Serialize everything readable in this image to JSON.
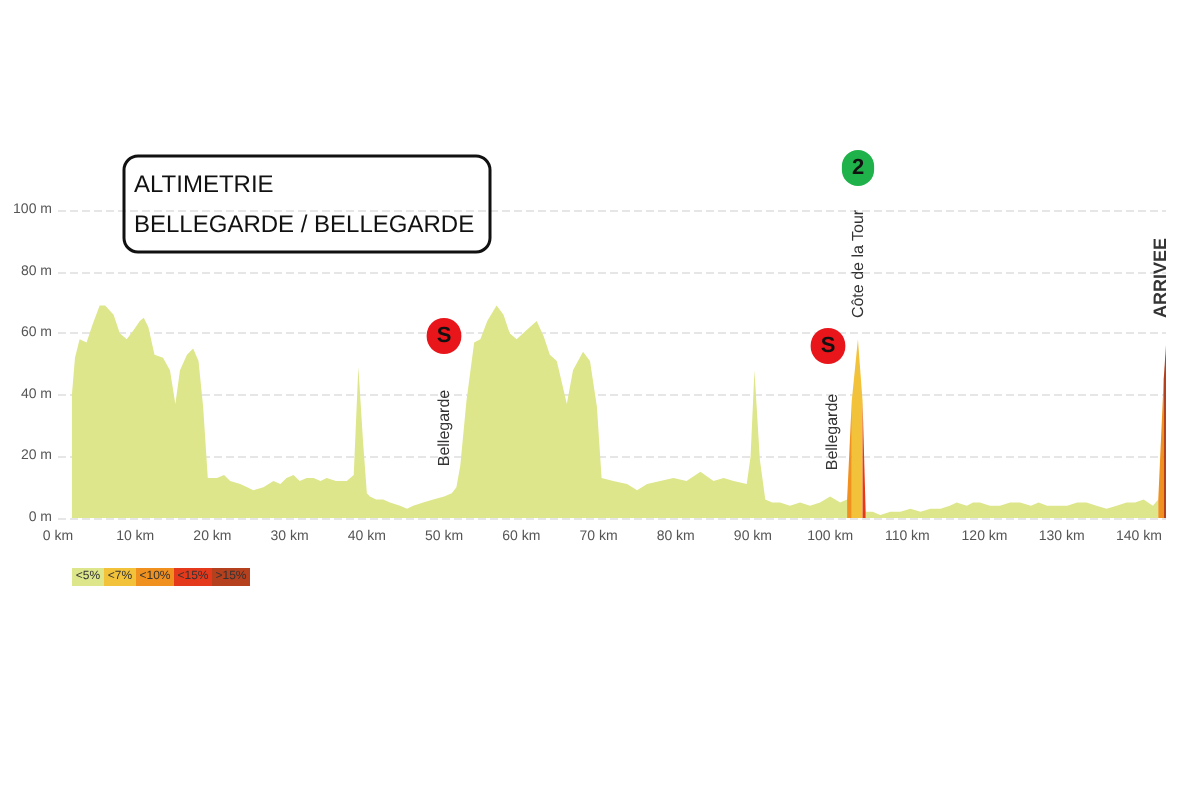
{
  "chart_data": {
    "type": "area",
    "title": "ALTIMETRIE",
    "subtitle": "BELLEGARDE / BELLEGARDE",
    "xlim": [
      0,
      143.5
    ],
    "xticks": [
      {
        "value": 0,
        "label": "0 km"
      },
      {
        "value": 10,
        "label": "10 km"
      },
      {
        "value": 20,
        "label": "20 km"
      },
      {
        "value": 30,
        "label": "30 km"
      },
      {
        "value": 40,
        "label": "40 km"
      },
      {
        "value": 50,
        "label": "50 km"
      },
      {
        "value": 60,
        "label": "60 km"
      },
      {
        "value": 70,
        "label": "70 km"
      },
      {
        "value": 80,
        "label": "80 km"
      },
      {
        "value": 90,
        "label": "90 km"
      },
      {
        "value": 100,
        "label": "100 km"
      },
      {
        "value": 110,
        "label": "110 km"
      },
      {
        "value": 120,
        "label": "120 km"
      },
      {
        "value": 130,
        "label": "130 km"
      },
      {
        "value": 140,
        "label": "140 km"
      }
    ],
    "ylim": [
      0,
      100
    ],
    "yticks": [
      {
        "value": 0,
        "label": "0 m"
      },
      {
        "value": 20,
        "label": "20 m"
      },
      {
        "value": 40,
        "label": "40 m"
      },
      {
        "value": 60,
        "label": "60 m"
      },
      {
        "value": 80,
        "label": "80 m"
      },
      {
        "value": 100,
        "label": "100 m"
      }
    ],
    "grid": "y",
    "legend": "bottom left",
    "series": [
      {
        "name": "<5%",
        "color": "#dde68a",
        "x": [
          1.8,
          2.2,
          2.8,
          3.7,
          4.5,
          5.4,
          6.1,
          7.2,
          8.0,
          8.9,
          9.8,
          10.6,
          11.1,
          11.7,
          12.5,
          13.6,
          14.5,
          15.2,
          15.8,
          16.7,
          17.5,
          18.2,
          18.8,
          19.4,
          20.6,
          21.5,
          22.3,
          23.6,
          24.5,
          25.3,
          26.6,
          27.9,
          28.8,
          29.6,
          30.5,
          31.3,
          32.2,
          33.1,
          34.0,
          34.8,
          36.0,
          37.4,
          38.3,
          38.9,
          39.5,
          40.0,
          40.4,
          41.2,
          42.1,
          43.0,
          44.3,
          45.2,
          46.0,
          47.3,
          48.6,
          50.0,
          51.0,
          51.6,
          52.1,
          52.9,
          53.9,
          54.7,
          55.6,
          56.8,
          57.7,
          58.5,
          59.4,
          60.7,
          62.0,
          62.9,
          63.7,
          64.6,
          65.9,
          66.7,
          68.0,
          68.9,
          69.8,
          70.4,
          71.9,
          73.7,
          75.0,
          76.3,
          78.0,
          79.7,
          81.4,
          83.2,
          84.9,
          86.2,
          87.5,
          89.2,
          89.7,
          90.2,
          90.9,
          91.6,
          92.5,
          93.5,
          94.8,
          96.1,
          97.4,
          98.7,
          100.0,
          101.3,
          102.2,
          103.4,
          104.6,
          105.5,
          106.5,
          107.8,
          109.1,
          110.4,
          111.7,
          113.0,
          114.3,
          115.5,
          116.4,
          117.7,
          118.5,
          119.4,
          120.7,
          122.0,
          123.3,
          124.6,
          126.0,
          127.0,
          128.1,
          129.5,
          130.7,
          132.0,
          133.2,
          134.5,
          135.8,
          137.1,
          138.4,
          139.5,
          140.6,
          141.8,
          142.5
        ],
        "values": [
          40,
          52,
          58,
          57,
          63,
          69,
          69,
          66,
          60,
          58,
          61,
          64,
          65,
          62,
          53,
          52,
          48,
          37,
          48,
          53,
          55,
          51,
          36,
          13,
          13,
          14,
          12,
          11,
          10,
          9,
          10,
          12,
          11,
          13,
          14,
          12,
          13,
          13,
          12,
          13,
          12,
          12,
          14,
          49,
          25,
          8,
          7,
          6,
          6,
          5,
          4,
          3,
          4,
          5,
          6,
          7,
          8,
          10,
          17,
          38,
          57,
          58,
          64,
          69,
          66,
          60,
          58,
          61,
          64,
          59,
          53,
          51,
          37,
          48,
          54,
          51,
          36,
          13,
          12,
          11,
          9,
          11,
          12,
          13,
          12,
          15,
          12,
          13,
          12,
          11,
          20,
          48,
          19,
          6,
          5,
          5,
          4,
          5,
          4,
          5,
          7,
          5,
          6,
          null,
          2,
          2,
          1,
          2,
          2,
          3,
          2,
          3,
          3,
          4,
          5,
          4,
          5,
          5,
          4,
          4,
          5,
          5,
          4,
          5,
          4,
          4,
          4,
          5,
          5,
          4,
          3,
          4,
          5,
          5,
          6,
          4,
          6
        ]
      },
      {
        "name": "<7%",
        "color": "#f2c23a",
        "x": [
          102.8,
          103.6,
          104.2
        ],
        "values": [
          38,
          58,
          38
        ]
      },
      {
        "name": "<10%",
        "color": "#f0901e",
        "x": [
          102.2,
          102.8,
          120.0,
          142.5,
          143.2
        ],
        "values": [
          6,
          38,
          null,
          6,
          45
        ]
      },
      {
        "name": "<15%",
        "color": "#e5391c",
        "x": [
          104.2,
          104.6
        ],
        "values": [
          38,
          2
        ]
      },
      {
        "name": ">15%",
        "color": "#b5401e",
        "x": [
          143.2,
          143.5
        ],
        "values": [
          45,
          56
        ]
      }
    ],
    "annotations": [
      "S",
      "Bellegarde",
      "S",
      "Bellegarde",
      "2",
      "Côte de la Tour",
      "ARRIVEE"
    ]
  }
}
